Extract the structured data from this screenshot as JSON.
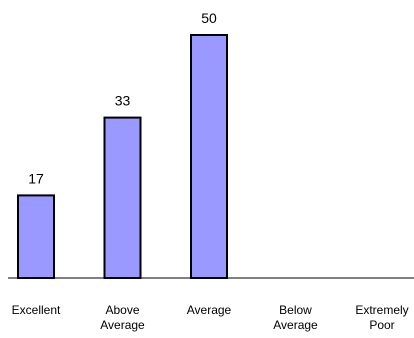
{
  "chart_data": {
    "type": "bar",
    "categories": [
      "Excellent",
      "Above Average",
      "Average",
      "Below Average",
      "Extremely Poor"
    ],
    "category_lines": [
      [
        "Excellent"
      ],
      [
        "Above",
        "Average"
      ],
      [
        "Average"
      ],
      [
        "Below",
        "Average"
      ],
      [
        "Extremely",
        "Poor"
      ]
    ],
    "values": [
      17,
      33,
      50,
      0,
      0
    ],
    "data_labels": [
      "17",
      "33",
      "50",
      "",
      ""
    ],
    "ylim": [
      0,
      50
    ],
    "bar_color": "#9999ff",
    "bar_stroke": "#000000",
    "axis_color": "#000000",
    "grid": false,
    "legend": "none"
  }
}
